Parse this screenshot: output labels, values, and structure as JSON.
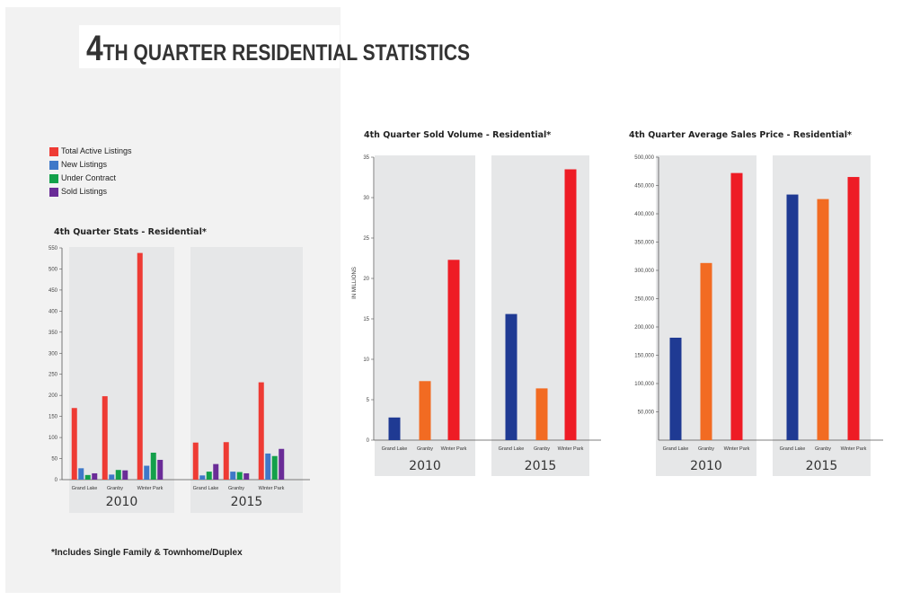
{
  "page": {
    "title_lead": "4",
    "title_rest": "TH QUARTER RESIDENTIAL  STATISTICS",
    "footnote": "*Includes Single Family & Townhome/Duplex"
  },
  "legend": [
    {
      "label": "Total Active Listings",
      "color": "#ee3b34"
    },
    {
      "label": "New Listings",
      "color": "#3f78c8"
    },
    {
      "label": "Under Contract",
      "color": "#13a04a"
    },
    {
      "label": "Sold Listings",
      "color": "#6a2c97"
    }
  ],
  "chart_data": [
    {
      "id": "stats",
      "type": "bar",
      "title": "4th Quarter Stats - Residential*",
      "ylabel": "",
      "ylim": [
        0,
        550
      ],
      "yticks": [
        0,
        50,
        100,
        150,
        200,
        250,
        300,
        350,
        400,
        450,
        500,
        550
      ],
      "ytick_labels": [
        "0",
        "50",
        "100",
        "150",
        "200",
        "250",
        "300",
        "350",
        "400",
        "450",
        "500",
        "550"
      ],
      "groups": [
        "2010",
        "2015"
      ],
      "categories": [
        "Grand Lake",
        "Granby",
        "Winter Park"
      ],
      "series": [
        {
          "name": "Total Active Listings",
          "color": "#ee3b34",
          "values": [
            [
              170,
              198,
              538
            ],
            [
              88,
              89,
              231
            ]
          ]
        },
        {
          "name": "New Listings",
          "color": "#3f78c8",
          "values": [
            [
              27,
              12,
              33
            ],
            [
              10,
              19,
              62
            ]
          ]
        },
        {
          "name": "Under Contract",
          "color": "#13a04a",
          "values": [
            [
              11,
              23,
              64
            ],
            [
              19,
              18,
              56
            ]
          ]
        },
        {
          "name": "Sold Listings",
          "color": "#6a2c97",
          "values": [
            [
              15,
              22,
              47
            ],
            [
              37,
              15,
              73
            ]
          ]
        }
      ]
    },
    {
      "id": "volume",
      "type": "bar",
      "title": "4th Quarter Sold Volume - Residential*",
      "ylabel": "IN MILLIONS",
      "ylim": [
        0,
        35
      ],
      "yticks": [
        0,
        5,
        10,
        15,
        20,
        25,
        30,
        35
      ],
      "ytick_labels": [
        "0",
        "5",
        "10",
        "15",
        "20",
        "25",
        "30",
        "35"
      ],
      "groups": [
        "2010",
        "2015"
      ],
      "categories": [
        "Grand Lake",
        "Granby",
        "Winter Park"
      ],
      "colors": [
        "#1f3a93",
        "#f26b22",
        "#ee1c25"
      ],
      "values": [
        [
          2.8,
          7.3,
          22.3
        ],
        [
          15.6,
          6.4,
          33.5
        ]
      ]
    },
    {
      "id": "price",
      "type": "bar",
      "title": "4th Quarter Average Sales Price - Residential*",
      "ylabel": "",
      "ylim": [
        0,
        500000
      ],
      "yticks": [
        50000,
        100000,
        150000,
        200000,
        250000,
        300000,
        350000,
        400000,
        450000,
        500000
      ],
      "ytick_labels": [
        "50,000",
        "100,000",
        "150,000",
        "200,000",
        "250,000",
        "300,000",
        "350,000",
        "400,000",
        "450,000",
        "500,000"
      ],
      "groups": [
        "2010",
        "2015"
      ],
      "categories": [
        "Grand Lake",
        "Granby",
        "Winter Park"
      ],
      "colors": [
        "#1f3a93",
        "#f26b22",
        "#ee1c25"
      ],
      "values": [
        [
          181000,
          313000,
          472000
        ],
        [
          434000,
          426000,
          465000
        ]
      ]
    }
  ]
}
